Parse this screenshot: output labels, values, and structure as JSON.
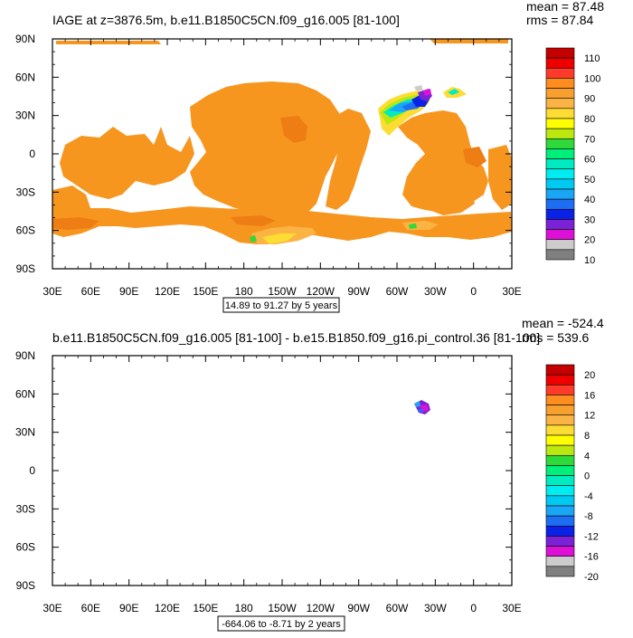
{
  "panels": [
    {
      "title": "IAGE at z=3876.5m, b.e11.B1850C5CN.f09_g16.005 [81-100]",
      "stats": {
        "mean": "mean = 87.48",
        "rms": "rms = 87.84"
      },
      "range_note": "14.89 to 91.27 by 5 years"
    },
    {
      "title": "b.e11.B1850C5CN.f09_g16.005 [81-100] - b.e15.B1850.f09_g16.pi_control.36 [81-100]",
      "stats": {
        "mean": "mean = -524.4",
        "rms": "rms = 539.6"
      },
      "range_note": "-664.06 to -8.71 by 2 years"
    }
  ],
  "chart_data": [
    {
      "type": "heatmap",
      "title": "IAGE at z=3876.5m, b.e11.B1850C5CN.f09_g16.005 [81-100]",
      "x_ticks": [
        "30E",
        "60E",
        "90E",
        "120E",
        "150E",
        "180",
        "150W",
        "120W",
        "90W",
        "60W",
        "30W",
        "0",
        "30E"
      ],
      "y_ticks": [
        "90N",
        "60N",
        "30N",
        "0",
        "30S",
        "60S",
        "90S"
      ],
      "colorbar": {
        "labels": [
          "110",
          "100",
          "90",
          "80",
          "70",
          "60",
          "50",
          "40",
          "30",
          "20",
          "10"
        ],
        "colors": [
          "#c40000",
          "#ee0000",
          "#ff3a2a",
          "#ff8c1e",
          "#f7a030",
          "#fbb444",
          "#fddc33",
          "#ffff00",
          "#bce70f",
          "#2fd93a",
          "#00ee7a",
          "#00ecc0",
          "#00ecf0",
          "#00c9f2",
          "#1aa6f5",
          "#1e6ef2",
          "#0a21e6",
          "#7b22d6",
          "#dd11d6",
          "#cccccc",
          "#7f7f7f"
        ]
      },
      "mean": 87.48,
      "rms": 87.84,
      "contour_min": 14.89,
      "contour_max": 91.27,
      "contour_interval": 5
    },
    {
      "type": "heatmap",
      "title": "b.e11.B1850C5CN.f09_g16.005 [81-100] - b.e15.B1850.f09_g16.pi_control.36 [81-100]",
      "x_ticks": [
        "30E",
        "60E",
        "90E",
        "120E",
        "150E",
        "180",
        "150W",
        "120W",
        "90W",
        "60W",
        "30W",
        "0",
        "30E"
      ],
      "y_ticks": [
        "90N",
        "60N",
        "30N",
        "0",
        "30S",
        "60S",
        "90S"
      ],
      "colorbar": {
        "labels": [
          "20",
          "16",
          "12",
          "8",
          "4",
          "0",
          "-4",
          "-8",
          "-12",
          "-16",
          "-20"
        ],
        "colors": [
          "#c40000",
          "#ee0000",
          "#ff3a2a",
          "#ff8c1e",
          "#f7a030",
          "#fbb444",
          "#fddc33",
          "#ffff00",
          "#bce70f",
          "#2fd93a",
          "#00ee7a",
          "#00ecc0",
          "#00ecf0",
          "#00c9f2",
          "#1aa6f5",
          "#1e6ef2",
          "#0a21e6",
          "#7b22d6",
          "#dd11d6",
          "#cccccc",
          "#7f7f7f"
        ]
      },
      "mean": -524.4,
      "rms": 539.6,
      "contour_min": -664.06,
      "contour_max": -8.71,
      "contour_interval": 2
    }
  ]
}
